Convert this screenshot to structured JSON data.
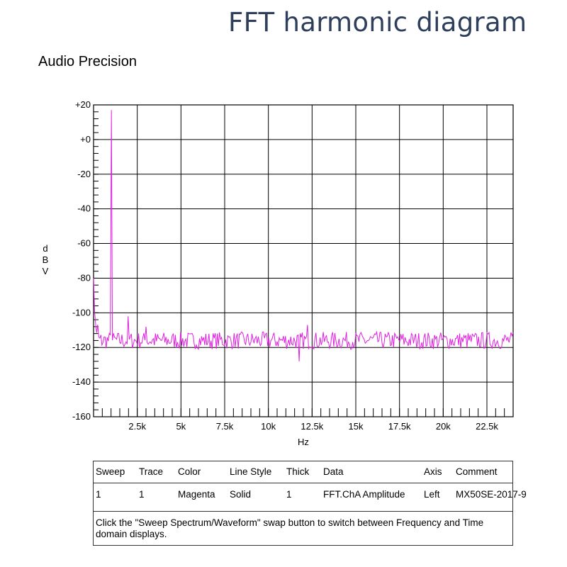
{
  "page": {
    "title": "FFT harmonic diagram",
    "brand": "Audio Precision"
  },
  "chart_data": {
    "type": "line",
    "title": "",
    "xlabel": "Hz",
    "ylabel": "dBV",
    "ylabel_letters": [
      "d",
      "B",
      "V"
    ],
    "xlim": [
      0,
      24000
    ],
    "ylim": [
      -160,
      20
    ],
    "grid": true,
    "y_ticks": [
      "+20",
      "+0",
      "-20",
      "-40",
      "-60",
      "-80",
      "-100",
      "-120",
      "-140",
      "-160"
    ],
    "x_ticks": [
      {
        "v": 2500,
        "label": "2.5k"
      },
      {
        "v": 5000,
        "label": "5k"
      },
      {
        "v": 7500,
        "label": "7.5k"
      },
      {
        "v": 10000,
        "label": "10k"
      },
      {
        "v": 12500,
        "label": "12.5k"
      },
      {
        "v": 15000,
        "label": "15k"
      },
      {
        "v": 17500,
        "label": "17.5k"
      },
      {
        "v": 20000,
        "label": "20k"
      },
      {
        "v": 22500,
        "label": "22.5k"
      }
    ],
    "series": [
      {
        "color": "#e020e0",
        "noise_floor": -116,
        "peaks": [
          {
            "x": 0,
            "y": -80
          },
          {
            "x": 1000,
            "y": 17
          },
          {
            "x": 2000,
            "y": -102
          },
          {
            "x": 3000,
            "y": -108
          },
          {
            "x": 12250,
            "y": -107
          },
          {
            "x": 11750,
            "y": -128
          }
        ]
      }
    ]
  },
  "legend": {
    "headers": [
      "Sweep",
      "Trace",
      "Color",
      "Line Style",
      "Thick",
      "Data",
      "Axis",
      "Comment"
    ],
    "row": [
      "1",
      "1",
      "Magenta",
      "Solid",
      "1",
      "FFT.ChA Amplitude",
      "Left",
      "MX50SE-2017-9"
    ],
    "note": "Click the \"Sweep Spectrum/Waveform\" swap button to switch between Frequency and Time domain displays."
  }
}
